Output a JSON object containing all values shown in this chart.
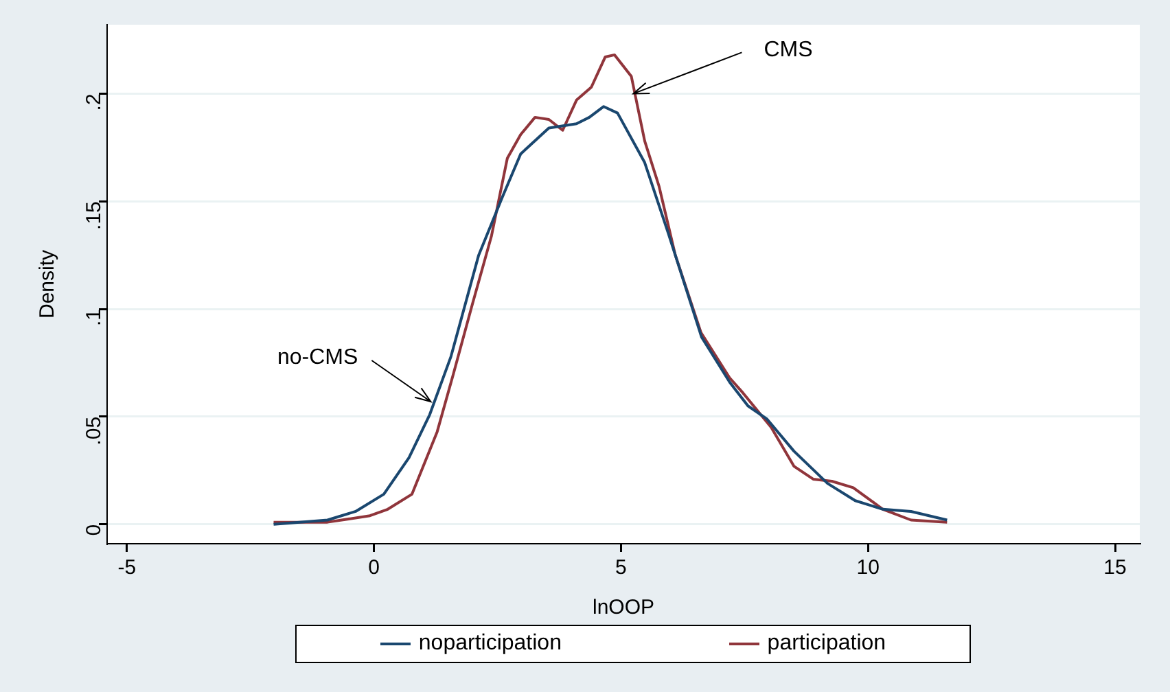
{
  "chart_data": {
    "type": "line",
    "xlabel": "lnOOP",
    "ylabel": "Density",
    "xlim": [
      -5.4,
      15.5
    ],
    "xticks": [
      -5,
      0,
      5,
      10,
      15
    ],
    "ylim": [
      -0.009,
      0.232
    ],
    "yticks": [
      {
        "value": 0,
        "label": "0"
      },
      {
        "value": 0.05,
        "label": ".05"
      },
      {
        "value": 0.1,
        "label": ".1"
      },
      {
        "value": 0.15,
        "label": ".15"
      },
      {
        "value": 0.2,
        "label": ".2"
      }
    ],
    "grid": "y",
    "legend": "bottom",
    "marker": "none",
    "line_style": "solid",
    "series": [
      {
        "name": "noparticipation",
        "color": "#1a476f",
        "x": [
          -2.03,
          -0.94,
          -0.37,
          0.2,
          0.71,
          1.13,
          1.56,
          2.12,
          2.6,
          2.97,
          3.54,
          4.1,
          4.36,
          4.65,
          4.93,
          5.48,
          5.96,
          6.63,
          7.2,
          7.57,
          7.95,
          8.5,
          9.18,
          9.74,
          10.3,
          10.87,
          11.6
        ],
        "values": [
          0,
          0.002,
          0.006,
          0.014,
          0.031,
          0.051,
          0.078,
          0.125,
          0.152,
          0.172,
          0.184,
          0.186,
          0.189,
          0.194,
          0.191,
          0.168,
          0.135,
          0.087,
          0.066,
          0.055,
          0.049,
          0.034,
          0.019,
          0.011,
          0.007,
          0.006,
          0.002
        ]
      },
      {
        "name": "participation",
        "color": "#90353b",
        "x": [
          -2.03,
          -0.94,
          -0.08,
          0.28,
          0.77,
          1.28,
          1.61,
          1.99,
          2.38,
          2.7,
          2.97,
          3.26,
          3.54,
          3.82,
          4.1,
          4.4,
          4.68,
          4.87,
          5.21,
          5.48,
          5.77,
          6.1,
          6.62,
          7.2,
          7.47,
          8.04,
          8.5,
          8.89,
          9.27,
          9.7,
          10.3,
          10.87,
          11.6
        ],
        "values": [
          0.001,
          0.001,
          0.004,
          0.007,
          0.014,
          0.043,
          0.07,
          0.102,
          0.134,
          0.17,
          0.181,
          0.189,
          0.188,
          0.183,
          0.197,
          0.203,
          0.217,
          0.218,
          0.208,
          0.178,
          0.157,
          0.125,
          0.089,
          0.068,
          0.061,
          0.045,
          0.027,
          0.021,
          0.02,
          0.017,
          0.007,
          0.002,
          0.001
        ]
      }
    ],
    "annotations": [
      {
        "text": "CMS",
        "x": 5.25,
        "y": 0.2
      },
      {
        "text": "no-CMS",
        "x": 1.15,
        "y": 0.057
      }
    ]
  }
}
